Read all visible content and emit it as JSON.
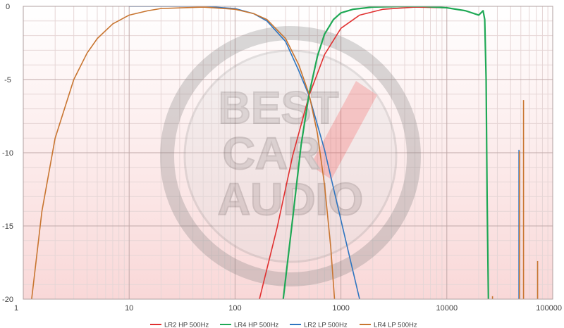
{
  "chart_data": {
    "type": "line",
    "x_scale": "log",
    "xlim": [
      1,
      100000
    ],
    "ylim": [
      -20,
      0
    ],
    "x_ticks": [
      1,
      10,
      100,
      1000,
      10000,
      100000
    ],
    "x_tick_labels": [
      "1",
      "10",
      "100",
      "1000",
      "10000",
      "100000"
    ],
    "y_ticks": [
      0,
      -5,
      -10,
      -15,
      -20
    ],
    "y_tick_labels": [
      "0",
      "-5",
      "-10",
      "-15",
      "-20"
    ],
    "grid": true,
    "legend_position": "bottom",
    "watermark": "BEST CAR AUDIO",
    "colors": {
      "grid_major": "#c0a8a8",
      "grid_minor": "#e6d6d6",
      "background_top": "#ffffff",
      "background_bottom": "#f9d8d8"
    },
    "series": [
      {
        "name": "LR2 HP 500Hz",
        "color": "#e03030",
        "points": [
          [
            170,
            -20
          ],
          [
            250,
            -15.1
          ],
          [
            350,
            -10.2
          ],
          [
            500,
            -6.1
          ],
          [
            700,
            -3.3
          ],
          [
            1000,
            -1.5
          ],
          [
            1500,
            -0.6
          ],
          [
            2500,
            -0.2
          ],
          [
            5000,
            -0.05
          ],
          [
            10000,
            -0.1
          ]
        ]
      },
      {
        "name": "LR4 HP 500Hz",
        "color": "#1fa855",
        "points": [
          [
            285,
            -20
          ],
          [
            350,
            -14.5
          ],
          [
            420,
            -9.5
          ],
          [
            500,
            -6.0
          ],
          [
            600,
            -3.4
          ],
          [
            700,
            -1.9
          ],
          [
            850,
            -0.9
          ],
          [
            1000,
            -0.45
          ],
          [
            1300,
            -0.2
          ],
          [
            2000,
            -0.05
          ],
          [
            4000,
            0
          ],
          [
            6000,
            0
          ],
          [
            10000,
            -0.1
          ],
          [
            15000,
            -0.3
          ],
          [
            20000,
            -0.6
          ],
          [
            22000,
            -0.3
          ],
          [
            22800,
            -0.9
          ],
          [
            23500,
            -5
          ],
          [
            24000,
            -13
          ],
          [
            24300,
            -16
          ],
          [
            24700,
            -20
          ]
        ]
      },
      {
        "name": "LR2 LP 500Hz",
        "color": "#2e75c0",
        "points": [
          [
            10,
            0
          ],
          [
            50,
            0
          ],
          [
            100,
            -0.15
          ],
          [
            150,
            -0.5
          ],
          [
            200,
            -1.0
          ],
          [
            300,
            -2.4
          ],
          [
            400,
            -4.4
          ],
          [
            500,
            -6.1
          ],
          [
            700,
            -9.8
          ],
          [
            1000,
            -14.6
          ],
          [
            1300,
            -18.1
          ],
          [
            1500,
            -20
          ]
        ]
      },
      {
        "name": "LR4 LP 500Hz",
        "color": "#c87530",
        "points": [
          [
            1.2,
            -20
          ],
          [
            1.5,
            -14.0
          ],
          [
            2,
            -9.0
          ],
          [
            3,
            -5.0
          ],
          [
            4,
            -3.2
          ],
          [
            5,
            -2.2
          ],
          [
            7,
            -1.2
          ],
          [
            10,
            -0.6
          ],
          [
            15,
            -0.3
          ],
          [
            20,
            -0.15
          ],
          [
            50,
            -0.05
          ],
          [
            100,
            -0.2
          ],
          [
            150,
            -0.5
          ],
          [
            200,
            -0.9
          ],
          [
            300,
            -2.2
          ],
          [
            400,
            -4.0
          ],
          [
            500,
            -6.0
          ],
          [
            600,
            -8.7
          ],
          [
            700,
            -12.2
          ],
          [
            800,
            -16.4
          ],
          [
            870,
            -20
          ]
        ]
      }
    ],
    "spikes": [
      {
        "series": "LR4 LP 500Hz",
        "x": 27000,
        "y_top": -19.8
      },
      {
        "series": "LR2 LP 500Hz",
        "x": 48000,
        "y_top": -9.8
      },
      {
        "series": "LR4 LP 500Hz",
        "x": 48500,
        "y_top": -9.9
      },
      {
        "series": "LR4 LP 500Hz",
        "x": 53000,
        "y_top": -6.4
      },
      {
        "series": "LR4 LP 500Hz",
        "x": 72000,
        "y_top": -17.4
      }
    ]
  }
}
